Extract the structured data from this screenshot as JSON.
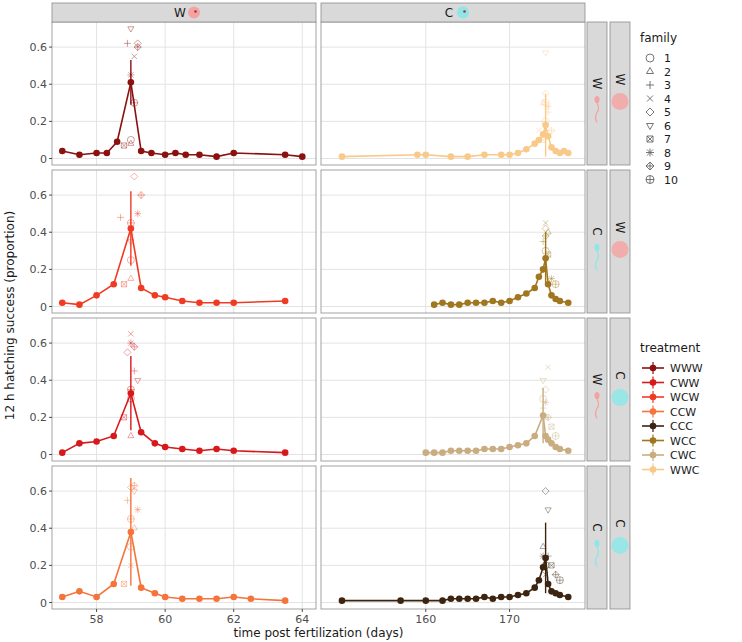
{
  "chart_data": {
    "type": "line",
    "y_label": "12 h hatching success (proportion)",
    "x_label": "time post fertilization (days)",
    "ylim": [
      -0.035,
      0.735
    ],
    "yticks": [
      0,
      0.2,
      0.4,
      0.6
    ],
    "grid": true,
    "legend": "right",
    "columns": [
      {
        "strip": "W",
        "xlim": [
          56.7,
          64.4
        ],
        "xticks": [
          58,
          60,
          62,
          64
        ]
      },
      {
        "strip": "C",
        "xlim": [
          147.5,
          179
        ],
        "xticks": [
          160,
          170
        ]
      }
    ],
    "rows": [
      {
        "inner": "W",
        "outer": "W"
      },
      {
        "inner": "C",
        "outer": "W"
      },
      {
        "inner": "W",
        "outer": "C"
      },
      {
        "inner": "C",
        "outer": "C"
      }
    ],
    "family_title": "family",
    "families": [
      {
        "name": "1",
        "marker": "circle"
      },
      {
        "name": "2",
        "marker": "triangle"
      },
      {
        "name": "3",
        "marker": "plus"
      },
      {
        "name": "4",
        "marker": "cross"
      },
      {
        "name": "5",
        "marker": "diamond"
      },
      {
        "name": "6",
        "marker": "triangle-down"
      },
      {
        "name": "7",
        "marker": "square-cross"
      },
      {
        "name": "8",
        "marker": "asterisk"
      },
      {
        "name": "9",
        "marker": "diamond-plus"
      },
      {
        "name": "10",
        "marker": "circle-plus"
      }
    ],
    "treatment_title": "treatment",
    "series": [
      {
        "name": "WWW",
        "color": "#8b1010",
        "x": [
          57,
          57.5,
          58,
          58.3,
          58.6,
          59,
          59.3,
          59.6,
          60,
          60.3,
          60.6,
          61,
          61.5,
          62,
          63.5,
          64
        ],
        "values": [
          0.04,
          0.02,
          0.03,
          0.03,
          0.09,
          0.41,
          0.04,
          0.03,
          0.02,
          0.03,
          0.02,
          0.02,
          0.01,
          0.03,
          0.02,
          0.01
        ],
        "errors": [
          null,
          null,
          null,
          null,
          null,
          0.12,
          null,
          null,
          null,
          null,
          null,
          null,
          null,
          null,
          null,
          null
        ],
        "family_x": [
          59,
          59,
          58.9,
          59.1,
          59.2,
          59,
          58.8,
          59,
          59.2,
          59.1
        ],
        "family_values": [
          0.1,
          0.08,
          0.62,
          0.55,
          0.62,
          0.7,
          0.07,
          0.45,
          0.6,
          0.3
        ],
        "family": [
          "1",
          "2",
          "3",
          "4",
          "5",
          "6",
          "7",
          "8",
          "9",
          "10"
        ]
      },
      {
        "name": "CWW",
        "color": "#d7191c",
        "x": [
          57,
          57.5,
          58,
          58.5,
          59,
          59.3,
          59.7,
          60,
          60.5,
          61,
          61.5,
          62,
          63.5
        ],
        "values": [
          0.01,
          0.06,
          0.07,
          0.1,
          0.33,
          0.12,
          0.06,
          0.04,
          0.03,
          0.02,
          0.03,
          0.02,
          0.01
        ],
        "errors": [
          null,
          null,
          null,
          null,
          0.2,
          null,
          null,
          null,
          null,
          null,
          null,
          null,
          null
        ],
        "family_x": [
          59,
          59,
          59.1,
          59,
          58.9,
          59.2,
          58.8,
          59,
          59.1,
          59
        ],
        "family_values": [
          0.3,
          0.1,
          0.45,
          0.65,
          0.55,
          0.4,
          0.2,
          0.6,
          0.58,
          0.35
        ],
        "family": [
          "1",
          "2",
          "3",
          "4",
          "5",
          "6",
          "7",
          "8",
          "9",
          "10"
        ]
      },
      {
        "name": "WCW",
        "color": "#f03b24",
        "x": [
          57,
          57.5,
          58,
          58.5,
          59,
          59.3,
          59.7,
          60,
          60.5,
          61,
          61.5,
          62,
          63.5
        ],
        "values": [
          0.02,
          0.01,
          0.06,
          0.12,
          0.42,
          0.1,
          0.06,
          0.05,
          0.03,
          0.02,
          0.02,
          0.02,
          0.03
        ],
        "errors": [
          null,
          null,
          null,
          null,
          0.2,
          null,
          null,
          null,
          null,
          null,
          null,
          null,
          null
        ],
        "family_x": [
          59,
          59,
          58.7,
          59,
          59.1,
          59,
          58.8,
          59.2,
          59.3,
          59
        ],
        "family_values": [
          0.25,
          0.15,
          0.48,
          0.4,
          0.7,
          0.35,
          0.12,
          0.5,
          0.6,
          0.45
        ],
        "family": [
          "1",
          "2",
          "3",
          "4",
          "5",
          "6",
          "7",
          "8",
          "9",
          "10"
        ]
      },
      {
        "name": "CCW",
        "color": "#f4743c",
        "x": [
          57,
          57.5,
          58,
          58.5,
          59,
          59.3,
          59.7,
          60,
          60.5,
          61,
          61.5,
          62,
          62.5,
          63.5
        ],
        "values": [
          0.03,
          0.06,
          0.03,
          0.1,
          0.38,
          0.08,
          0.05,
          0.03,
          0.02,
          0.02,
          0.02,
          0.03,
          0.02,
          0.01
        ],
        "errors": [
          null,
          null,
          null,
          null,
          0.29,
          null,
          null,
          null,
          null,
          null,
          null,
          null,
          null,
          null
        ],
        "family_x": [
          59,
          59.1,
          58.9,
          59,
          59,
          59.1,
          58.8,
          59.2,
          59.1,
          59
        ],
        "family_values": [
          0.3,
          0.4,
          0.55,
          0.2,
          0.62,
          0.6,
          0.1,
          0.5,
          0.63,
          0.45
        ],
        "family": [
          "1",
          "2",
          "3",
          "4",
          "5",
          "6",
          "7",
          "8",
          "9",
          "10"
        ]
      },
      {
        "name": "CCC",
        "color": "#3d2410",
        "x": [
          150,
          157,
          160,
          162,
          163,
          164,
          165,
          166,
          167,
          168,
          169,
          170,
          171,
          172,
          173,
          173.5,
          174,
          174.3,
          174.6,
          175,
          175.5,
          176,
          177
        ],
        "values": [
          0.01,
          0.01,
          0.01,
          0.01,
          0.02,
          0.02,
          0.02,
          0.02,
          0.03,
          0.02,
          0.03,
          0.03,
          0.04,
          0.05,
          0.08,
          0.12,
          0.19,
          0.24,
          0.1,
          0.06,
          0.05,
          0.04,
          0.03
        ],
        "errors": [
          null,
          null,
          null,
          null,
          null,
          null,
          null,
          null,
          null,
          null,
          null,
          null,
          null,
          null,
          null,
          null,
          null,
          0.19,
          null,
          null,
          null,
          null,
          null
        ],
        "family_x": [
          174.3,
          174,
          174.6,
          174.3,
          174.3,
          174.6,
          175,
          174,
          175.5,
          176
        ],
        "family_values": [
          0.2,
          0.3,
          0.25,
          0.15,
          0.6,
          0.5,
          0.2,
          0.25,
          0.15,
          0.12
        ],
        "family": [
          "1",
          "2",
          "3",
          "4",
          "5",
          "6",
          "7",
          "8",
          "9",
          "10"
        ]
      },
      {
        "name": "WCC",
        "color": "#a0761e",
        "x": [
          161,
          162,
          163,
          164,
          165,
          166,
          167,
          168,
          169,
          170,
          171,
          172,
          173,
          173.5,
          174,
          174.3,
          174.6,
          175,
          175.5,
          176,
          177
        ],
        "values": [
          0.01,
          0.02,
          0.01,
          0.01,
          0.02,
          0.02,
          0.02,
          0.03,
          0.02,
          0.03,
          0.05,
          0.07,
          0.1,
          0.16,
          0.2,
          0.26,
          0.12,
          0.06,
          0.04,
          0.03,
          0.02
        ],
        "errors": [
          null,
          null,
          null,
          null,
          null,
          null,
          null,
          null,
          null,
          null,
          null,
          null,
          null,
          null,
          null,
          0.14,
          null,
          null,
          null,
          null,
          null
        ],
        "family_x": [
          174.3,
          174.6,
          174,
          174.3,
          174.3,
          174,
          174.6,
          175,
          174.3,
          175.5
        ],
        "family_values": [
          0.3,
          0.4,
          0.35,
          0.45,
          0.42,
          0.2,
          0.28,
          0.15,
          0.38,
          0.12
        ],
        "family": [
          "1",
          "2",
          "3",
          "4",
          "5",
          "6",
          "7",
          "8",
          "9",
          "10"
        ]
      },
      {
        "name": "CWC",
        "color": "#c9ad80",
        "x": [
          160,
          161,
          162,
          163,
          164,
          165,
          166,
          167,
          168,
          169,
          170,
          171,
          172,
          173,
          174,
          174.3,
          174.6,
          175,
          175.5,
          176,
          177
        ],
        "values": [
          0.01,
          0.01,
          0.01,
          0.02,
          0.02,
          0.02,
          0.02,
          0.03,
          0.03,
          0.03,
          0.04,
          0.05,
          0.06,
          0.1,
          0.21,
          0.1,
          0.08,
          0.06,
          0.04,
          0.03,
          0.02
        ],
        "errors": [
          null,
          null,
          null,
          null,
          null,
          null,
          null,
          null,
          null,
          null,
          null,
          null,
          null,
          null,
          0.15,
          null,
          null,
          null,
          null,
          null,
          null
        ],
        "family_x": [
          174,
          174.3,
          174,
          174.6,
          174.3,
          174,
          175,
          174.3,
          174.6,
          175.5
        ],
        "family_values": [
          0.3,
          0.2,
          0.25,
          0.47,
          0.35,
          0.4,
          0.15,
          0.28,
          0.2,
          0.1
        ],
        "family": [
          "1",
          "2",
          "3",
          "4",
          "5",
          "6",
          "7",
          "8",
          "9",
          "10"
        ]
      },
      {
        "name": "WWC",
        "color": "#f9c98a",
        "x": [
          150,
          159,
          160,
          163,
          165,
          167,
          169,
          170,
          171,
          172,
          173,
          173.5,
          174,
          174.3,
          174.6,
          175,
          175.5,
          176,
          176.5,
          177
        ],
        "values": [
          0.01,
          0.02,
          0.02,
          0.01,
          0.01,
          0.02,
          0.02,
          0.02,
          0.03,
          0.05,
          0.08,
          0.1,
          0.13,
          0.18,
          0.12,
          0.06,
          0.04,
          0.03,
          0.04,
          0.03
        ],
        "errors": [
          null,
          null,
          null,
          null,
          null,
          null,
          null,
          null,
          null,
          null,
          null,
          null,
          null,
          0.17,
          null,
          null,
          null,
          null,
          null,
          null
        ],
        "family_x": [
          174.3,
          174,
          174.6,
          173.5,
          174.3,
          174.3,
          174,
          174.6,
          175,
          174.3
        ],
        "family_values": [
          0.2,
          0.3,
          0.25,
          0.15,
          0.35,
          0.57,
          0.1,
          0.28,
          0.15,
          0.3
        ],
        "family": [
          "1",
          "2",
          "3",
          "4",
          "5",
          "6",
          "7",
          "8",
          "9",
          "10"
        ]
      }
    ]
  }
}
